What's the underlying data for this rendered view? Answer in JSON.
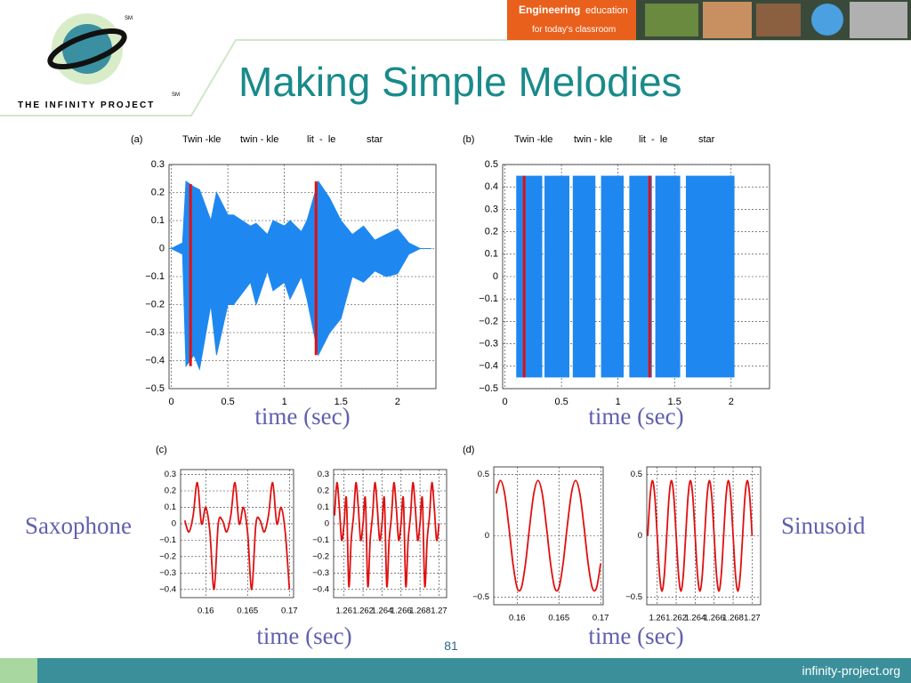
{
  "header": {
    "brand": "Engineering",
    "brand_suffix": "education",
    "tagline": "for today's classroom"
  },
  "logo": {
    "name": "THE INFINITY PROJECT",
    "marks": [
      "SM",
      "SM"
    ]
  },
  "title": "Making Simple Melodies",
  "side_labels": [
    "Saxophone",
    "Sinusoid"
  ],
  "page_number": "81",
  "footer": "infinity-project.org",
  "chart_data": [
    {
      "type": "band",
      "panel_label": "(a)",
      "annotations": [
        "Twin -kle",
        "twin - kle",
        "lit  -  le",
        "star"
      ],
      "xlabel": "time (sec)",
      "x": [
        0,
        0.1,
        0.13,
        0.2,
        0.25,
        0.35,
        0.4,
        0.5,
        0.55,
        0.7,
        0.75,
        0.85,
        0.9,
        1.0,
        1.05,
        1.15,
        1.2,
        1.3,
        1.4,
        1.5,
        1.6,
        1.7,
        1.8,
        1.9,
        2.0,
        2.1,
        2.2,
        2.3
      ],
      "series": [
        {
          "color": "#1e88f0",
          "values": [
            0,
            0.02,
            0.24,
            0.22,
            0.21,
            0.1,
            0.2,
            0.12,
            0.12,
            0.08,
            0.09,
            0.05,
            0.1,
            0.08,
            0.1,
            0.06,
            0.1,
            0.24,
            0.18,
            0.1,
            0.05,
            0.08,
            0.03,
            0.05,
            0.07,
            0.02,
            0,
            0
          ]
        },
        {
          "color": "#1e88f0",
          "values": [
            0,
            -0.02,
            -0.42,
            -0.38,
            -0.43,
            -0.2,
            -0.38,
            -0.2,
            -0.2,
            -0.12,
            -0.2,
            -0.08,
            -0.15,
            -0.12,
            -0.18,
            -0.1,
            -0.18,
            -0.38,
            -0.3,
            -0.25,
            -0.1,
            -0.12,
            -0.08,
            -0.1,
            -0.09,
            -0.02,
            0,
            0
          ]
        }
      ],
      "markers": [
        {
          "x": 0.17,
          "y": [
            -0.42,
            0.23
          ]
        },
        {
          "x": 1.28,
          "y": [
            -0.38,
            0.24
          ]
        }
      ],
      "marker_color": "#e01010",
      "xlim": [
        -0.02,
        2.34
      ],
      "ylim": [
        -0.5,
        0.3
      ],
      "xticks": [
        0,
        0.5,
        1,
        1.5,
        2
      ],
      "yticks": [
        0.3,
        0.2,
        0.1,
        0,
        {
          "value": -0.1,
          "label": "−0.1"
        },
        {
          "value": -0.2,
          "label": "−0.2"
        },
        {
          "value": -0.3,
          "label": "−0.3"
        },
        {
          "value": -0.4,
          "label": "−0.4"
        },
        {
          "value": -0.5,
          "label": "−0.5"
        }
      ],
      "grid": true
    },
    {
      "type": "blocks",
      "panel_label": "(b)",
      "annotations": [
        "Twin -kle",
        "twin - kle",
        "lit  -  le",
        "star"
      ],
      "xlabel": "time (sec)",
      "color": "#1e88f0",
      "blocks": [
        {
          "x": [
            0.1,
            0.33
          ],
          "y": [
            -0.45,
            0.45
          ]
        },
        {
          "x": [
            0.35,
            0.57
          ],
          "y": [
            -0.45,
            0.45
          ]
        },
        {
          "x": [
            0.6,
            0.8
          ],
          "y": [
            -0.45,
            0.45
          ]
        },
        {
          "x": [
            0.85,
            1.05
          ],
          "y": [
            -0.45,
            0.45
          ]
        },
        {
          "x": [
            1.1,
            1.3
          ],
          "y": [
            -0.45,
            0.45
          ]
        },
        {
          "x": [
            1.33,
            1.55
          ],
          "y": [
            -0.45,
            0.45
          ]
        },
        {
          "x": [
            1.6,
            2.03
          ],
          "y": [
            -0.45,
            0.45
          ]
        }
      ],
      "markers": [
        {
          "x": 0.17,
          "y": [
            -0.45,
            0.45
          ]
        },
        {
          "x": 1.28,
          "y": [
            -0.45,
            0.45
          ]
        }
      ],
      "marker_color": "#e01010",
      "xlim": [
        -0.02,
        2.34
      ],
      "ylim": [
        -0.5,
        0.5
      ],
      "xticks": [
        0,
        0.5,
        1,
        1.5,
        2
      ],
      "yticks": [
        0.5,
        0.4,
        0.3,
        0.2,
        0.1,
        0,
        {
          "value": -0.1,
          "label": "−0.1"
        },
        {
          "value": -0.2,
          "label": "−0.2"
        },
        {
          "value": -0.3,
          "label": "−0.3"
        },
        {
          "value": -0.4,
          "label": "−0.4"
        },
        {
          "value": -0.5,
          "label": "−0.5"
        }
      ],
      "grid": true
    },
    {
      "type": "line",
      "panel_label": "(c)",
      "xlabel": "time (sec)",
      "x": [
        0.1575,
        0.158,
        0.1585,
        0.159,
        0.1595,
        0.16,
        0.1605,
        0.161,
        0.1615,
        0.162,
        0.1625,
        0.163,
        0.1635,
        0.164,
        0.1645,
        0.165,
        0.1655,
        0.166,
        0.1665,
        0.167,
        0.1675,
        0.168,
        0.1685,
        0.169,
        0.1695,
        0.17
      ],
      "series": [
        {
          "color": "#e01010",
          "values": [
            0.02,
            -0.05,
            0.05,
            0.25,
            0.0,
            0.1,
            -0.05,
            -0.4,
            0.0,
            0.02,
            -0.05,
            0.05,
            0.25,
            0.0,
            0.1,
            -0.05,
            -0.4,
            0.0,
            0.02,
            -0.05,
            0.05,
            0.25,
            0.0,
            0.1,
            -0.05,
            -0.4
          ]
        }
      ],
      "xlim": [
        0.157,
        0.1705
      ],
      "ylim": [
        -0.45,
        0.33
      ],
      "xticks": [
        0.16,
        0.165,
        0.17
      ],
      "yticks": [
        0.3,
        0.2,
        0.1,
        0,
        {
          "value": -0.1,
          "label": "−0.1"
        },
        {
          "value": -0.2,
          "label": "−0.2"
        },
        {
          "value": -0.3,
          "label": "−0.3"
        },
        {
          "value": -0.4,
          "label": "−0.4"
        }
      ],
      "grid": true
    },
    {
      "type": "line",
      "x": [
        1.259,
        1.25925,
        1.2595,
        1.25975,
        1.26,
        1.26025,
        1.2605,
        1.26075,
        1.261,
        1.26125,
        1.2615,
        1.26175,
        1.262,
        1.26225,
        1.2625,
        1.26275,
        1.263,
        1.26325,
        1.2635,
        1.26375,
        1.264,
        1.26425,
        1.2645,
        1.26475,
        1.265,
        1.26525,
        1.2655,
        1.26575,
        1.266,
        1.26625,
        1.2665,
        1.26675,
        1.267,
        1.26725,
        1.2675,
        1.26775,
        1.268,
        1.26825,
        1.2685,
        1.26875,
        1.269,
        1.26925,
        1.2695,
        1.26975,
        1.27
      ],
      "series": [
        {
          "color": "#e01010",
          "values": [
            0.05,
            0.25,
            0.1,
            -0.1,
            0.0,
            0.15,
            -0.38,
            -0.1,
            0.05,
            0.25,
            0.1,
            -0.1,
            0.0,
            0.15,
            -0.38,
            -0.1,
            0.05,
            0.25,
            0.1,
            -0.1,
            0.0,
            0.15,
            -0.38,
            -0.1,
            0.05,
            0.25,
            0.1,
            -0.1,
            0.0,
            0.15,
            -0.38,
            -0.1,
            0.05,
            0.25,
            0.1,
            -0.1,
            0.0,
            0.15,
            -0.38,
            -0.1,
            0.05,
            0.25,
            0.1,
            -0.1,
            0.0
          ]
        }
      ],
      "xlim": [
        1.2589,
        1.2708
      ],
      "ylim": [
        -0.45,
        0.33
      ],
      "xticks": [
        1.26,
        1.262,
        1.264,
        1.266,
        1.268,
        1.27
      ],
      "yticks": [
        0.3,
        0.2,
        0.1,
        0,
        {
          "value": -0.1,
          "label": "−0.1"
        },
        {
          "value": -0.2,
          "label": "−0.2"
        },
        {
          "value": -0.3,
          "label": "−0.3"
        },
        {
          "value": -0.4,
          "label": "−0.4"
        }
      ],
      "grid": true
    },
    {
      "type": "line",
      "panel_label": "(d)",
      "xlabel": "time (sec)",
      "x": [
        0.1575,
        0.158,
        0.1585,
        0.159,
        0.1595,
        0.16,
        0.1605,
        0.161,
        0.1615,
        0.162,
        0.1625,
        0.163,
        0.1635,
        0.164,
        0.1645,
        0.165,
        0.1655,
        0.166,
        0.1665,
        0.167,
        0.1675,
        0.168,
        0.1685,
        0.169,
        0.1695,
        0.17
      ],
      "series": [
        {
          "color": "#e01010",
          "values": [
            0.345,
            0.45,
            0.345,
            0.078,
            -0.225,
            -0.423,
            -0.423,
            -0.225,
            0.078,
            0.345,
            0.45,
            0.345,
            0.078,
            -0.225,
            -0.423,
            -0.423,
            -0.225,
            0.078,
            0.345,
            0.45,
            0.345,
            0.078,
            -0.225,
            -0.423,
            -0.423,
            -0.225
          ]
        }
      ],
      "xlim": [
        0.1572,
        0.1703
      ],
      "ylim": [
        -0.56,
        0.56
      ],
      "xticks": [
        0.16,
        0.165,
        0.17
      ],
      "yticks": [
        0.5,
        0,
        {
          "value": -0.5,
          "label": "−0.5"
        }
      ],
      "grid": true
    },
    {
      "type": "line",
      "x": [
        1.259,
        1.25925,
        1.2595,
        1.25975,
        1.26,
        1.26025,
        1.2605,
        1.26075,
        1.261,
        1.26125,
        1.2615,
        1.26175,
        1.262,
        1.26225,
        1.2625,
        1.26275,
        1.263,
        1.26325,
        1.2635,
        1.26375,
        1.264,
        1.26425,
        1.2645,
        1.26475,
        1.265,
        1.26525,
        1.2655,
        1.26575,
        1.266,
        1.26625,
        1.2665,
        1.26675,
        1.267,
        1.26725,
        1.2675,
        1.26775,
        1.268,
        1.26825,
        1.2685,
        1.26875,
        1.269,
        1.26925,
        1.2695,
        1.26975,
        1.27
      ],
      "series": [
        {
          "color": "#e01010",
          "values": [
            0,
            0.318,
            0.45,
            0.318,
            0,
            -0.318,
            -0.45,
            -0.318,
            0,
            0.318,
            0.45,
            0.318,
            0,
            -0.318,
            -0.45,
            -0.318,
            0,
            0.318,
            0.45,
            0.318,
            0,
            -0.318,
            -0.45,
            -0.318,
            0,
            0.318,
            0.45,
            0.318,
            0,
            -0.318,
            -0.45,
            -0.318,
            0,
            0.318,
            0.45,
            0.318,
            0,
            -0.318,
            -0.45,
            -0.318,
            0,
            0.318,
            0.45,
            0.318,
            0
          ]
        }
      ],
      "xlim": [
        1.2589,
        1.2709
      ],
      "ylim": [
        -0.56,
        0.56
      ],
      "xticks": [
        1.26,
        1.262,
        1.264,
        1.266,
        1.268,
        1.27
      ],
      "yticks": [
        0.5,
        0,
        {
          "value": -0.5,
          "label": "−0.5"
        }
      ],
      "grid": true
    }
  ]
}
